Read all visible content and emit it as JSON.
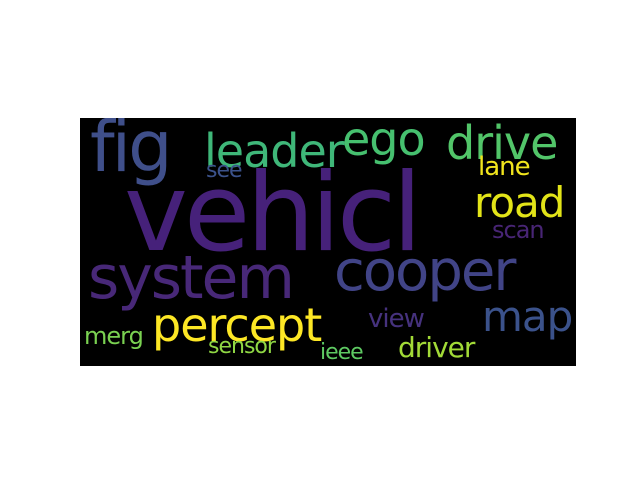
{
  "wordcloud": {
    "background": "#000000",
    "words": [
      {
        "key": "vehicl",
        "text": "vehicl",
        "color": "#46217a"
      },
      {
        "key": "fig",
        "text": "fig",
        "color": "#3f4f8a"
      },
      {
        "key": "leader",
        "text": "leader",
        "color": "#3fb779"
      },
      {
        "key": "ego",
        "text": "ego",
        "color": "#46c06f"
      },
      {
        "key": "drive",
        "text": "drive",
        "color": "#52c569"
      },
      {
        "key": "see",
        "text": "see",
        "color": "#3b528b"
      },
      {
        "key": "lane",
        "text": "lane",
        "color": "#f1e51d"
      },
      {
        "key": "road",
        "text": "road",
        "color": "#e2e418"
      },
      {
        "key": "scan",
        "text": "scan",
        "color": "#482575"
      },
      {
        "key": "system",
        "text": "system",
        "color": "#482878"
      },
      {
        "key": "cooper",
        "text": "cooper",
        "color": "#414487"
      },
      {
        "key": "percept",
        "text": "percept",
        "color": "#fde725"
      },
      {
        "key": "view",
        "text": "view",
        "color": "#46327e"
      },
      {
        "key": "map",
        "text": "map",
        "color": "#3b528b"
      },
      {
        "key": "merg",
        "text": "merg",
        "color": "#7ad151"
      },
      {
        "key": "sensor",
        "text": "sensor",
        "color": "#8fd744"
      },
      {
        "key": "ieee",
        "text": "ieee",
        "color": "#5ec962"
      },
      {
        "key": "driver",
        "text": "driver",
        "color": "#a2da37"
      }
    ]
  }
}
